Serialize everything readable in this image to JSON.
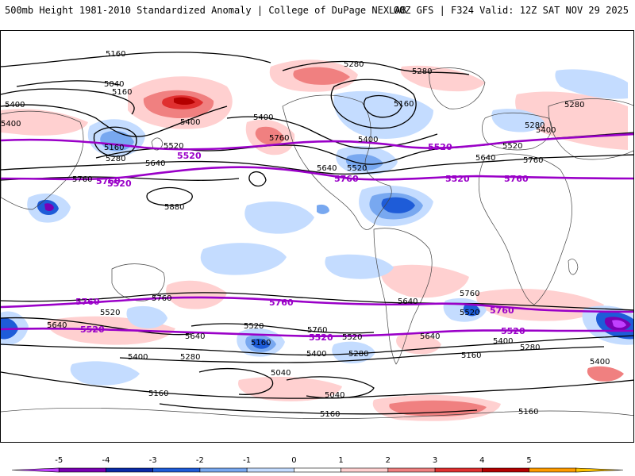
{
  "header": {
    "title_left": "500mb Height 1981-2010 Standardized Anomaly | College of DuPage NEXLAB",
    "title_right": "00Z GFS | F324 Valid: 12Z SAT NOV 29 2025"
  },
  "colors": {
    "contour": "#000000",
    "highlight_contour": "#9a00c8",
    "coast": "#444444",
    "bg": "#ffffff"
  },
  "contour_labels": {
    "l5160_a": "5160",
    "l5040_a": "5040",
    "l5160_b": "5160",
    "l5400_a": "5400",
    "l5280_a": "5280",
    "l5280_b": "5280",
    "l5160_c": "5160",
    "l5400_b": "5400",
    "l5400_c": "5400",
    "l5160_d": "5160",
    "l5280_c": "5280",
    "l5520_a": "5520",
    "l5640_a": "5640",
    "l5760_a": "5760",
    "l5400_d": "5400",
    "l5640_b": "5640",
    "l5520_b": "5520",
    "l5280_d": "5280",
    "l5400_e": "5400",
    "l5520_c": "5520",
    "l5640_c": "5640",
    "l5760_b": "5760",
    "l5880_a": "5880",
    "h5520_a": "5520",
    "h5520_b": "5520",
    "h5520_c": "5520",
    "h5520_d": "5520",
    "h5760_a": "5760",
    "h5760_b": "5760",
    "h5760_c": "5760",
    "l5760_c": "5760",
    "l5760_d": "5760",
    "l5760_e": "5760",
    "l5640_d": "5640",
    "l5520_d": "5520",
    "l5520_e": "5520",
    "l5520_f": "5520",
    "l5640_e": "5640",
    "l5640_f": "5640",
    "l5400_f": "5400",
    "l5280_e": "5280",
    "l5160_e": "5160",
    "l5400_g": "5400",
    "l5280_f": "5280",
    "l5160_f": "5160",
    "l5040_b": "5040",
    "l5040_c": "5040",
    "l5160_g": "5160",
    "l5160_h": "5160",
    "l5160_i": "5160",
    "l5400_h": "5400",
    "l5280_g": "5280",
    "l5520_g": "5520",
    "l5640_g": "5640",
    "l5760_f": "5760",
    "h5760_d": "5760",
    "h5760_e": "5760",
    "h5760_f": "5760",
    "h5520_e": "5520",
    "h5520_f": "5520",
    "h5520_g": "5520",
    "l5400_i": "5400",
    "l5280_h": "5280",
    "l5400_j": "5400"
  },
  "colorbar": {
    "ticks": [
      "-5",
      "-4",
      "-3",
      "-2",
      "-1",
      "0",
      "1",
      "2",
      "3",
      "4",
      "5"
    ],
    "colors": [
      "#c040ff",
      "#7a00b4",
      "#0a2aa8",
      "#1e5cd8",
      "#78a8f0",
      "#c4dcff",
      "#ffffff",
      "#ffd0d0",
      "#f08080",
      "#e03030",
      "#b40000",
      "#ff9c00",
      "#ffc400"
    ]
  }
}
